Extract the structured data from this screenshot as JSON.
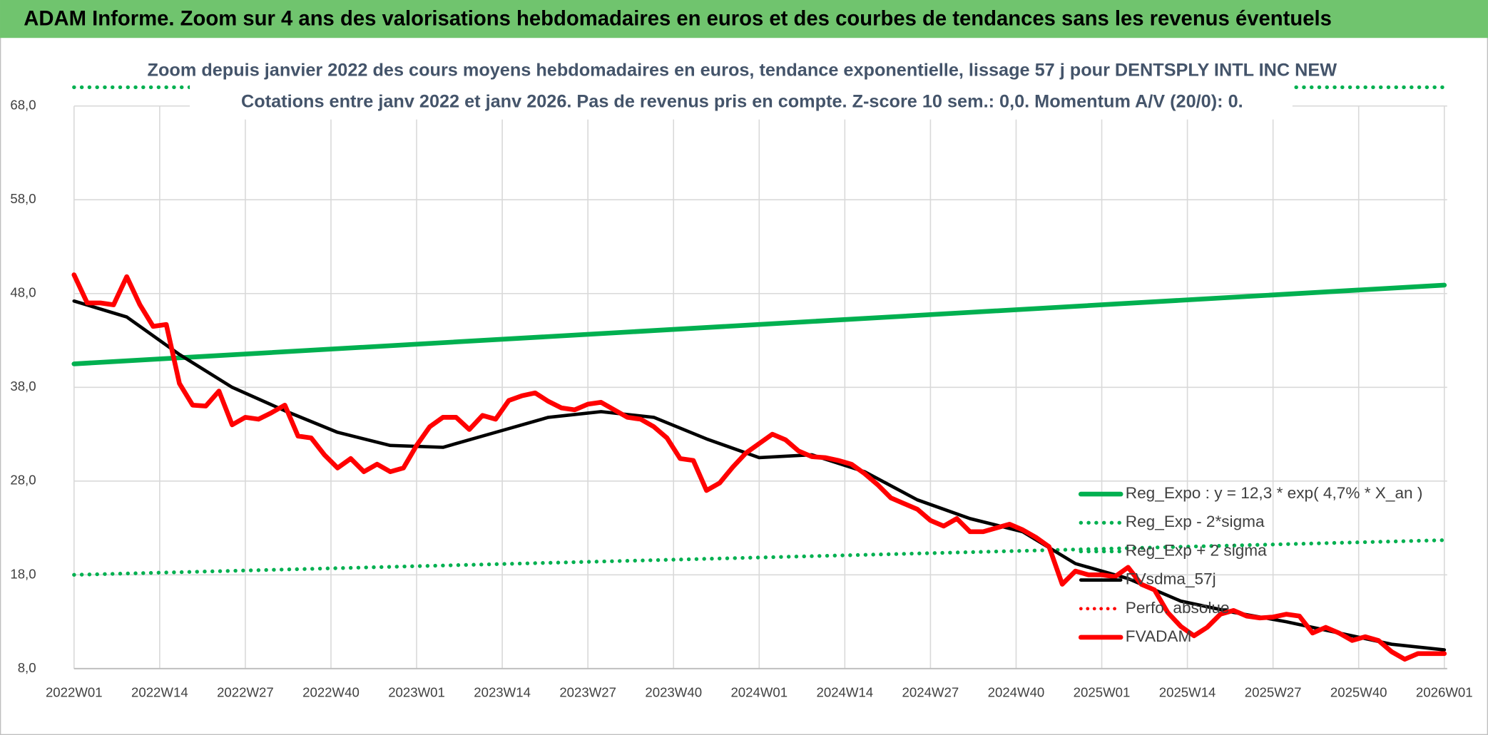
{
  "chart_data": {
    "type": "line",
    "header": "ADAM Informe. Zoom sur 4 ans des valorisations hebdomadaires en euros et des courbes de tendances sans les revenus éventuels",
    "title": "Zoom depuis janvier 2022 des cours moyens hebdomadaires en euros, tendance exponentielle, lissage 57 j pour DENTSPLY INTL INC NEW",
    "subtitle": "Cotations entre janv 2022 et janv 2026. Pas de revenus pris en compte. Z-score 10 sem.: 0,0. Momentum A/V (20/0): 0.",
    "xlim": [
      0,
      208
    ],
    "xticks": [
      {
        "value": 0,
        "label": "2022W01"
      },
      {
        "value": 13,
        "label": "2022W14"
      },
      {
        "value": 26,
        "label": "2022W27"
      },
      {
        "value": 39,
        "label": "2022W40"
      },
      {
        "value": 52,
        "label": "2023W01"
      },
      {
        "value": 65,
        "label": "2023W14"
      },
      {
        "value": 78,
        "label": "2023W27"
      },
      {
        "value": 91,
        "label": "2023W40"
      },
      {
        "value": 104,
        "label": "2024W01"
      },
      {
        "value": 117,
        "label": "2024W14"
      },
      {
        "value": 130,
        "label": "2024W27"
      },
      {
        "value": 143,
        "label": "2024W40"
      },
      {
        "value": 156,
        "label": "2025W01"
      },
      {
        "value": 169,
        "label": "2025W14"
      },
      {
        "value": 182,
        "label": "2025W27"
      },
      {
        "value": 195,
        "label": "2025W40"
      },
      {
        "value": 208,
        "label": "2026W01"
      }
    ],
    "ylim": [
      8,
      70
    ],
    "yticks": [
      {
        "value": 8,
        "label": "8,0"
      },
      {
        "value": 18,
        "label": "18,0"
      },
      {
        "value": 28,
        "label": "28,0"
      },
      {
        "value": 38,
        "label": "38,0"
      },
      {
        "value": 48,
        "label": "48,0"
      },
      {
        "value": 58,
        "label": "58,0"
      },
      {
        "value": 68,
        "label": "68,0"
      }
    ],
    "grid": true,
    "legend": "right",
    "series": [
      {
        "name": "Reg_Expo : y = 12,3 * exp( 4,7% *  X_an )",
        "color": "#00b050",
        "style": "solid",
        "width": 5,
        "x": [
          0,
          208
        ],
        "values": [
          40.5,
          48.9
        ]
      },
      {
        "name": "Reg_Exp - 2*sigma",
        "color": "#00b050",
        "style": "dotted",
        "width": 4,
        "x": [
          0,
          208
        ],
        "values": [
          18.0,
          21.7
        ]
      },
      {
        "name": "Reg_Exp + 2 sigma",
        "color": "#00b050",
        "style": "dotted",
        "width": 4,
        "x": [
          0,
          208
        ],
        "values": [
          70,
          70
        ]
      },
      {
        "name": "FVsdma_57j",
        "color": "#000000",
        "style": "solid",
        "width": 3.5,
        "x": [
          0,
          8,
          16,
          24,
          32,
          40,
          48,
          56,
          64,
          72,
          80,
          88,
          96,
          104,
          112,
          120,
          128,
          136,
          144,
          152,
          160,
          168,
          176,
          184,
          192,
          200,
          208
        ],
        "values": [
          47.2,
          45.5,
          41.5,
          38.0,
          35.5,
          33.2,
          31.8,
          31.6,
          33.2,
          34.8,
          35.4,
          34.8,
          32.5,
          30.5,
          30.8,
          29.0,
          26.0,
          24.0,
          22.6,
          19.2,
          17.6,
          15.2,
          14.0,
          13.0,
          11.8,
          10.6,
          10.0
        ]
      },
      {
        "name": "Perfo. absolue",
        "color": "#ff0000",
        "style": "dotted",
        "width": 3.5,
        "x": [],
        "values": []
      },
      {
        "name": "FVADAM",
        "color": "#ff0000",
        "style": "solid",
        "width": 5,
        "x": [
          0,
          2,
          4,
          6,
          8,
          10,
          12,
          14,
          16,
          18,
          20,
          22,
          24,
          26,
          28,
          30,
          32,
          34,
          36,
          38,
          40,
          42,
          44,
          46,
          48,
          50,
          52,
          54,
          56,
          58,
          60,
          62,
          64,
          66,
          68,
          70,
          72,
          74,
          76,
          78,
          80,
          82,
          84,
          86,
          88,
          90,
          92,
          94,
          96,
          98,
          100,
          102,
          104,
          106,
          108,
          110,
          112,
          114,
          116,
          118,
          120,
          122,
          124,
          126,
          128,
          130,
          132,
          134,
          136,
          138,
          140,
          142,
          144,
          146,
          148,
          150,
          152,
          154,
          156,
          158,
          160,
          162,
          164,
          166,
          168,
          170,
          172,
          174,
          176,
          178,
          180,
          182,
          184,
          186,
          188,
          190,
          192,
          194,
          196,
          198,
          200,
          202,
          204,
          206,
          208
        ],
        "values": [
          50.0,
          47.0,
          47.0,
          46.8,
          49.8,
          46.8,
          44.5,
          44.7,
          38.4,
          36.1,
          36.0,
          37.6,
          34.0,
          34.8,
          34.6,
          35.3,
          36.1,
          32.8,
          32.6,
          30.8,
          29.4,
          30.4,
          29.0,
          29.8,
          29.0,
          29.4,
          31.8,
          33.8,
          34.8,
          34.8,
          33.5,
          35.0,
          34.6,
          36.6,
          37.1,
          37.4,
          36.5,
          35.8,
          35.6,
          36.2,
          36.4,
          35.6,
          34.8,
          34.6,
          33.8,
          32.6,
          30.4,
          30.2,
          27.0,
          27.8,
          29.5,
          31.0,
          32.0,
          33.0,
          32.4,
          31.2,
          30.6,
          30.5,
          30.2,
          29.8,
          28.8,
          27.6,
          26.2,
          25.6,
          25.0,
          23.8,
          23.2,
          24.0,
          22.6,
          22.6,
          23.0,
          23.4,
          22.8,
          22.0,
          21.0,
          17.0,
          18.4,
          18.0,
          18.0,
          17.8,
          18.8,
          17.0,
          16.4,
          14.0,
          12.5,
          11.5,
          12.4,
          13.8,
          14.2,
          13.6,
          13.4,
          13.5,
          13.8,
          13.6,
          11.8,
          12.4,
          11.8,
          11.0,
          11.4,
          11.0,
          9.8,
          9.0,
          9.6,
          9.6,
          9.6
        ]
      }
    ]
  }
}
